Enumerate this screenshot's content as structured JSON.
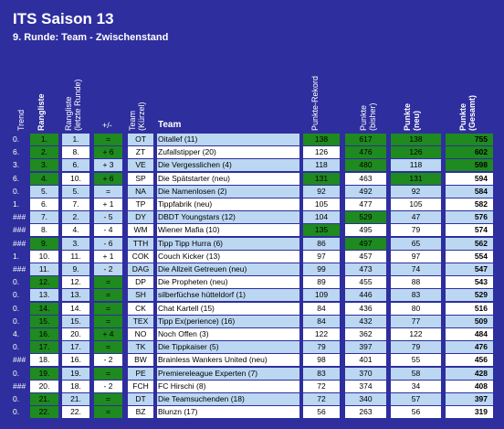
{
  "header": {
    "title": "ITS Saison 13",
    "subtitle": "9. Runde: Team - Zwischenstand"
  },
  "columns": {
    "trend": "Trend",
    "rangliste": "Rangliste",
    "rangliste_letzte": "Rangliste\n(letzte Runde)",
    "diff": "+/-",
    "kuerzel": "Team\n(Kürzel)",
    "team": "Team",
    "rekord": "Punkte-Rekord",
    "bisher": "Punkte\n(bisher)",
    "neu": "Punkte\n(neu)",
    "gesamt": "Punkte\n(Gesamt)"
  },
  "colors": {
    "background": "#2e2e9e",
    "row_light_blue": "#bcd7f2",
    "row_white": "#ffffff",
    "highlight_green": "#1f8a1f"
  },
  "rows": [
    {
      "trend": "0.",
      "rang": "1.",
      "last": "1.",
      "diff": "=",
      "abbr": "OT",
      "team": "Oitallef (11)",
      "rekord": "138",
      "bisher": "617",
      "neu": "138",
      "gesamt": "755"
    },
    {
      "trend": "6.",
      "rang": "2.",
      "last": "8.",
      "diff": "+ 6",
      "abbr": "ZT",
      "team": "Zufallstipper (20)",
      "rekord": "126",
      "bisher": "476",
      "neu": "126",
      "gesamt": "602"
    },
    {
      "trend": "3.",
      "rang": "3.",
      "last": "6.",
      "diff": "+ 3",
      "abbr": "VE",
      "team": "Die Vergesslichen (4)",
      "rekord": "118",
      "bisher": "480",
      "neu": "118",
      "gesamt": "598"
    },
    {
      "trend": "6.",
      "rang": "4.",
      "last": "10.",
      "diff": "+ 6",
      "abbr": "SP",
      "team": "Die Spätstarter (neu)",
      "rekord": "131",
      "bisher": "463",
      "neu": "131",
      "gesamt": "594"
    },
    {
      "trend": "0.",
      "rang": "5.",
      "last": "5.",
      "diff": "=",
      "abbr": "NA",
      "team": "Die Namenlosen (2)",
      "rekord": "92",
      "bisher": "492",
      "neu": "92",
      "gesamt": "584"
    },
    {
      "trend": "1.",
      "rang": "6.",
      "last": "7.",
      "diff": "+ 1",
      "abbr": "TP",
      "team": "Tippfabrik (neu)",
      "rekord": "105",
      "bisher": "477",
      "neu": "105",
      "gesamt": "582"
    },
    {
      "trend": "###",
      "rang": "7.",
      "last": "2.",
      "diff": "- 5",
      "abbr": "DY",
      "team": "DBDT Youngstars (12)",
      "rekord": "104",
      "bisher": "529",
      "neu": "47",
      "gesamt": "576"
    },
    {
      "trend": "###",
      "rang": "8.",
      "last": "4.",
      "diff": "- 4",
      "abbr": "WM",
      "team": "Wiener Mafia (10)",
      "rekord": "135",
      "bisher": "495",
      "neu": "79",
      "gesamt": "574"
    },
    {
      "trend": "###",
      "rang": "9.",
      "last": "3.",
      "diff": "- 6",
      "abbr": "TTH",
      "team": "Tipp Tipp Hurra (6)",
      "rekord": "86",
      "bisher": "497",
      "neu": "65",
      "gesamt": "562"
    },
    {
      "trend": "1.",
      "rang": "10.",
      "last": "11.",
      "diff": "+ 1",
      "abbr": "COK",
      "team": "Couch Kicker (13)",
      "rekord": "97",
      "bisher": "457",
      "neu": "97",
      "gesamt": "554"
    },
    {
      "trend": "###",
      "rang": "11.",
      "last": "9.",
      "diff": "- 2",
      "abbr": "DAG",
      "team": "Die Allzeit Getreuen (neu)",
      "rekord": "99",
      "bisher": "473",
      "neu": "74",
      "gesamt": "547"
    },
    {
      "trend": "0.",
      "rang": "12.",
      "last": "12.",
      "diff": "=",
      "abbr": "DP",
      "team": "Die Propheten (neu)",
      "rekord": "89",
      "bisher": "455",
      "neu": "88",
      "gesamt": "543"
    },
    {
      "trend": "0.",
      "rang": "13.",
      "last": "13.",
      "diff": "=",
      "abbr": "SH",
      "team": "silberfüchse hütteldorf (1)",
      "rekord": "109",
      "bisher": "446",
      "neu": "83",
      "gesamt": "529"
    },
    {
      "trend": "0.",
      "rang": "14.",
      "last": "14.",
      "diff": "=",
      "abbr": "CK",
      "team": "Chat Kartell (15)",
      "rekord": "84",
      "bisher": "436",
      "neu": "80",
      "gesamt": "516"
    },
    {
      "trend": "0.",
      "rang": "15.",
      "last": "15.",
      "diff": "=",
      "abbr": "TEX",
      "team": "Tipp Ex(perience) (16)",
      "rekord": "84",
      "bisher": "432",
      "neu": "77",
      "gesamt": "509"
    },
    {
      "trend": "4.",
      "rang": "16.",
      "last": "20.",
      "diff": "+ 4",
      "abbr": "NO",
      "team": "Noch Offen (3)",
      "rekord": "122",
      "bisher": "362",
      "neu": "122",
      "gesamt": "484"
    },
    {
      "trend": "0.",
      "rang": "17.",
      "last": "17.",
      "diff": "=",
      "abbr": "TK",
      "team": "Die Tippkaiser (5)",
      "rekord": "79",
      "bisher": "397",
      "neu": "79",
      "gesamt": "476"
    },
    {
      "trend": "###",
      "rang": "18.",
      "last": "16.",
      "diff": "- 2",
      "abbr": "BW",
      "team": "Brainless Wankers United (neu)",
      "rekord": "98",
      "bisher": "401",
      "neu": "55",
      "gesamt": "456"
    },
    {
      "trend": "0.",
      "rang": "19.",
      "last": "19.",
      "diff": "=",
      "abbr": "PE",
      "team": "Premiereleague Experten (7)",
      "rekord": "83",
      "bisher": "370",
      "neu": "58",
      "gesamt": "428"
    },
    {
      "trend": "###",
      "rang": "20.",
      "last": "18.",
      "diff": "- 2",
      "abbr": "FCH",
      "team": "FC Hirschi (8)",
      "rekord": "72",
      "bisher": "374",
      "neu": "34",
      "gesamt": "408"
    },
    {
      "trend": "0.",
      "rang": "21.",
      "last": "21.",
      "diff": "=",
      "abbr": "DT",
      "team": "Die Teamsuchenden (18)",
      "rekord": "72",
      "bisher": "340",
      "neu": "57",
      "gesamt": "397"
    },
    {
      "trend": "0.",
      "rang": "22.",
      "last": "22.",
      "diff": "=",
      "abbr": "BZ",
      "team": "Blunzn (17)",
      "rekord": "56",
      "bisher": "263",
      "neu": "56",
      "gesamt": "319"
    }
  ],
  "green_cells": {
    "rang": [
      "1.",
      "2.",
      "3.",
      "4.",
      "9.",
      "12.",
      "14.",
      "15.",
      "16.",
      "17.",
      "19.",
      "21.",
      "22."
    ],
    "diff_rows": [
      0,
      1,
      3,
      11,
      12,
      13,
      14,
      15,
      16,
      18,
      20,
      21
    ],
    "rekord_rows": [
      0,
      3,
      7
    ],
    "bisher_rows": [
      0,
      1,
      2,
      6,
      8
    ],
    "neu_rows": [
      0,
      1,
      3
    ],
    "gesamt_rows": [
      0,
      1,
      2
    ]
  }
}
